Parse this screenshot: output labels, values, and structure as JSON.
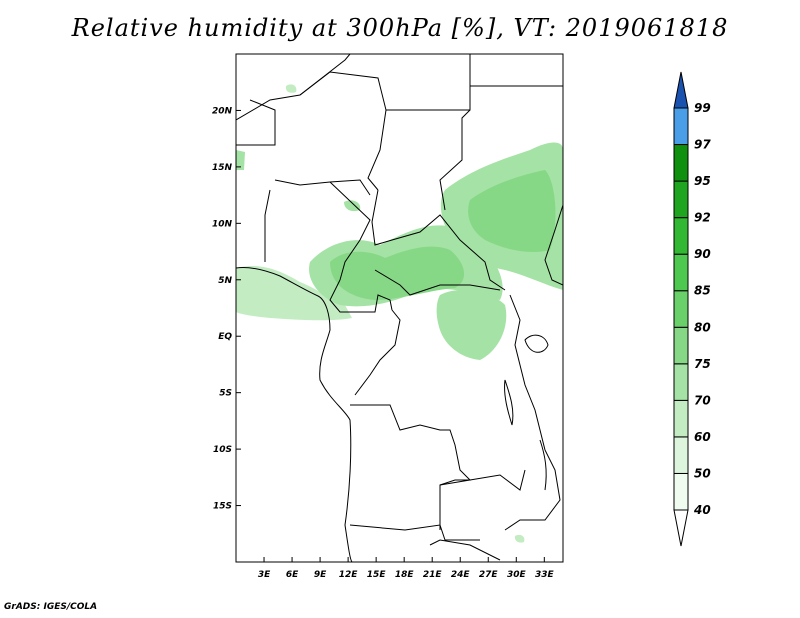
{
  "title": "Relative humidity at 300hPa [%], VT: 2019061818",
  "credit": "GrADS: IGES/COLA",
  "map": {
    "lon_range": [
      0,
      35
    ],
    "lat_range": [
      -20,
      25
    ],
    "lon_ticks": [
      "3E",
      "6E",
      "9E",
      "12E",
      "15E",
      "18E",
      "21E",
      "24E",
      "27E",
      "30E",
      "33E"
    ],
    "lat_ticks": [
      "20N",
      "15N",
      "10N",
      "5N",
      "EQ",
      "5S",
      "10S",
      "15S"
    ]
  },
  "colorbar": {
    "levels": [
      "40",
      "50",
      "60",
      "70",
      "75",
      "80",
      "85",
      "90",
      "92",
      "95",
      "97",
      "99"
    ],
    "colors": [
      "#f0fcf0",
      "#dcf5dc",
      "#c3ecc3",
      "#a5e2a5",
      "#86d886",
      "#6ad06a",
      "#4ec84e",
      "#33b833",
      "#1fa51f",
      "#0f910f",
      "#4a9ee8",
      "#2a78d8",
      "#1a52b0"
    ]
  }
}
